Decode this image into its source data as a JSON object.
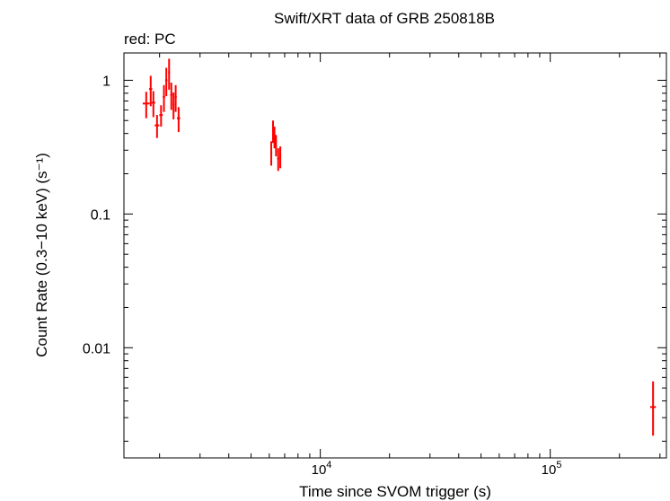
{
  "chart_data": {
    "type": "scatter",
    "title": "Swift/XRT data of GRB 250818B",
    "subtitle": "red: PC",
    "xlabel": "Time since SVOM trigger (s)",
    "ylabel": "Count Rate (0.3−10 keV) (s⁻¹)",
    "x_scale": "log",
    "y_scale": "log",
    "xlim": [
      1400,
      320000
    ],
    "ylim": [
      0.0015,
      1.6
    ],
    "x_major_ticks": [
      {
        "value": 10000,
        "base": "10",
        "exp": "4"
      },
      {
        "value": 100000,
        "base": "10",
        "exp": "5"
      }
    ],
    "y_major_ticks": [
      {
        "value": 1,
        "label": "1"
      },
      {
        "value": 0.1,
        "label": "0.1"
      },
      {
        "value": 0.01,
        "label": "0.01"
      }
    ],
    "grid": false,
    "series": [
      {
        "color": "#ff0000",
        "points": [
          {
            "x": 1750,
            "xerr": [
              60,
              60
            ],
            "y": 0.67,
            "yerr": [
              0.15,
              0.15
            ]
          },
          {
            "x": 1830,
            "xerr": [
              30,
              30
            ],
            "y": 0.86,
            "yerr": [
              0.22,
              0.22
            ]
          },
          {
            "x": 1880,
            "xerr": [
              35,
              35
            ],
            "y": 0.68,
            "yerr": [
              0.15,
              0.15
            ]
          },
          {
            "x": 1950,
            "xerr": [
              45,
              45
            ],
            "y": 0.46,
            "yerr": [
              0.09,
              0.09
            ]
          },
          {
            "x": 2030,
            "xerr": [
              35,
              35
            ],
            "y": 0.55,
            "yerr": [
              0.1,
              0.1
            ]
          },
          {
            "x": 2090,
            "xerr": [
              25,
              25
            ],
            "y": 0.75,
            "yerr": [
              0.17,
              0.17
            ]
          },
          {
            "x": 2140,
            "xerr": [
              25,
              25
            ],
            "y": 1.0,
            "yerr": [
              0.24,
              0.24
            ]
          },
          {
            "x": 2200,
            "xerr": [
              20,
              20
            ],
            "y": 1.15,
            "yerr": [
              0.3,
              0.3
            ]
          },
          {
            "x": 2250,
            "xerr": [
              25,
              25
            ],
            "y": 0.78,
            "yerr": [
              0.18,
              0.18
            ]
          },
          {
            "x": 2300,
            "xerr": [
              20,
              20
            ],
            "y": 0.66,
            "yerr": [
              0.15,
              0.15
            ]
          },
          {
            "x": 2350,
            "xerr": [
              25,
              25
            ],
            "y": 0.75,
            "yerr": [
              0.17,
              0.17
            ]
          },
          {
            "x": 2420,
            "xerr": [
              40,
              40
            ],
            "y": 0.52,
            "yerr": [
              0.11,
              0.11
            ]
          },
          {
            "x": 6120,
            "xerr": [
              60,
              60
            ],
            "y": 0.29,
            "yerr": [
              0.06,
              0.06
            ]
          },
          {
            "x": 6230,
            "xerr": [
              40,
              40
            ],
            "y": 0.42,
            "yerr": [
              0.08,
              0.08
            ]
          },
          {
            "x": 6320,
            "xerr": [
              40,
              40
            ],
            "y": 0.38,
            "yerr": [
              0.07,
              0.07
            ]
          },
          {
            "x": 6420,
            "xerr": [
              40,
              40
            ],
            "y": 0.33,
            "yerr": [
              0.06,
              0.06
            ]
          },
          {
            "x": 6560,
            "xerr": [
              70,
              70
            ],
            "y": 0.26,
            "yerr": [
              0.05,
              0.05
            ]
          },
          {
            "x": 6700,
            "xerr": [
              60,
              60
            ],
            "y": 0.27,
            "yerr": [
              0.05,
              0.05
            ]
          },
          {
            "x": 280000,
            "xerr": [
              8000,
              8000
            ],
            "y": 0.0036,
            "yerr": [
              0.0014,
              0.002
            ]
          }
        ]
      }
    ]
  }
}
